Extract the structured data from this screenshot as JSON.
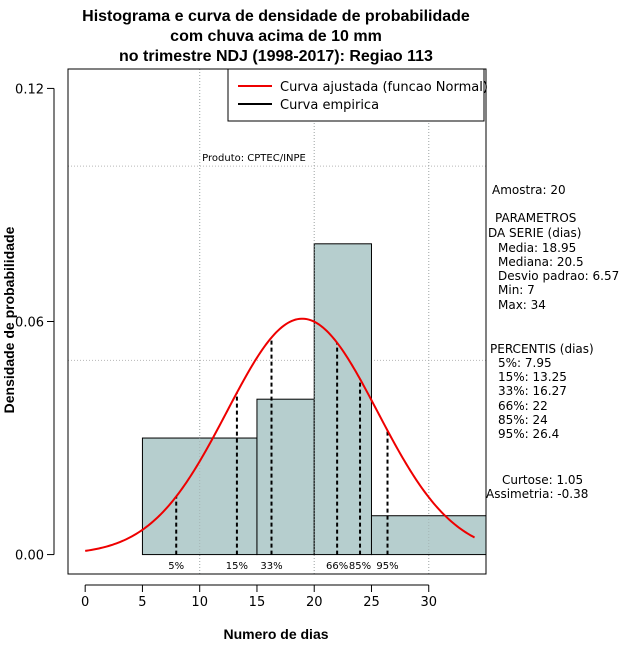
{
  "chart_data": {
    "type": "bar",
    "title_lines": [
      "Histograma e curva de densidade de probabilidade",
      "com chuva acima de 10 mm",
      "no trimestre NDJ (1998-2017): Regiao 113"
    ],
    "xlabel": "Numero de dias",
    "ylabel": "Densidade de probabilidade",
    "xlim": [
      -1.5,
      35
    ],
    "ylim": [
      -0.005,
      0.125
    ],
    "x_ticks": [
      0,
      5,
      10,
      15,
      20,
      25,
      30
    ],
    "x_tick_labels": [
      "0",
      "5",
      "10",
      "15",
      "20",
      "25",
      "30"
    ],
    "y_ticks": [
      0.0,
      0.06,
      0.12
    ],
    "y_tick_labels": [
      "0.00",
      "0.06",
      "0.12"
    ],
    "grid": true,
    "bins": [
      {
        "start": 5,
        "end": 15,
        "density": 0.03
      },
      {
        "start": 15,
        "end": 20,
        "density": 0.04
      },
      {
        "start": 20,
        "end": 25,
        "density": 0.08
      },
      {
        "start": 25,
        "end": 35,
        "density": 0.01
      }
    ],
    "normal_fit": {
      "mean": 18.95,
      "sd": 6.57,
      "from": 0,
      "to": 34,
      "color": "#ee0000"
    },
    "bar_color": "#b6cece",
    "percentile_lines": [
      {
        "x": 7.95,
        "label": "5%"
      },
      {
        "x": 13.25,
        "label": "15%"
      },
      {
        "x": 16.27,
        "label": "33%"
      },
      {
        "x": 22,
        "label": "66%"
      },
      {
        "x": 24,
        "label": "85%"
      },
      {
        "x": 26.4,
        "label": "95%"
      }
    ],
    "legend": {
      "position": "top-right",
      "entries": [
        {
          "label": "Curva ajustada (funcao Normal)",
          "color": "#ee0000"
        },
        {
          "label": "Curva empirica",
          "color": "#000000"
        }
      ]
    },
    "annotation": "Produto: CPTEC/INPE"
  },
  "stats_panel": {
    "amostra": "Amostra: 20",
    "param_title_1": "PARAMETROS",
    "param_title_2": "DA SERIE (dias)",
    "media": "Media: 18.95",
    "mediana": "Mediana: 20.5",
    "desvio": "Desvio padrao: 6.57",
    "min": "Min: 7",
    "max": "Max: 34",
    "perc_title": "PERCENTIS (dias)",
    "p5": "5%: 7.95",
    "p15": "15%: 13.25",
    "p33": "33%: 16.27",
    "p66": "66%: 22",
    "p85": "85%: 24",
    "p95": "95%: 26.4",
    "curtose": "Curtose: 1.05",
    "assimetria": "Assimetria: -0.38"
  }
}
